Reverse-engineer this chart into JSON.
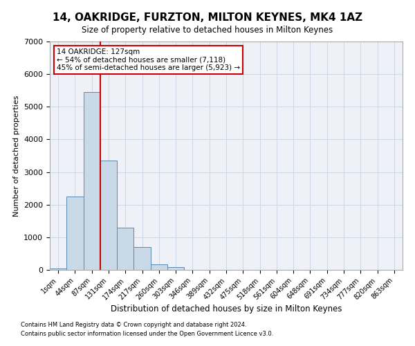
{
  "title": "14, OAKRIDGE, FURZTON, MILTON KEYNES, MK4 1AZ",
  "subtitle": "Size of property relative to detached houses in Milton Keynes",
  "xlabel": "Distribution of detached houses by size in Milton Keynes",
  "ylabel": "Number of detached properties",
  "footnote1": "Contains HM Land Registry data © Crown copyright and database right 2024.",
  "footnote2": "Contains public sector information licensed under the Open Government Licence v3.0.",
  "bar_labels": [
    "1sqm",
    "44sqm",
    "87sqm",
    "131sqm",
    "174sqm",
    "217sqm",
    "260sqm",
    "303sqm",
    "346sqm",
    "389sqm",
    "432sqm",
    "475sqm",
    "518sqm",
    "561sqm",
    "604sqm",
    "648sqm",
    "691sqm",
    "734sqm",
    "777sqm",
    "820sqm",
    "863sqm"
  ],
  "bar_values": [
    50,
    2250,
    5450,
    3350,
    1300,
    700,
    175,
    80,
    0,
    0,
    0,
    0,
    0,
    0,
    0,
    0,
    0,
    0,
    0,
    0,
    0
  ],
  "bar_color": "#c9d9e8",
  "bar_edge_color": "#5a8ab0",
  "grid_color": "#d0d8e8",
  "background_color": "#eef2f8",
  "annotation_text": "14 OAKRIDGE: 127sqm\n← 54% of detached houses are smaller (7,118)\n45% of semi-detached houses are larger (5,923) →",
  "annotation_box_color": "#ffffff",
  "annotation_box_edge": "#cc0000",
  "vline_x": 2.5,
  "ylim": [
    0,
    7000
  ],
  "yticks": [
    0,
    1000,
    2000,
    3000,
    4000,
    5000,
    6000,
    7000
  ]
}
